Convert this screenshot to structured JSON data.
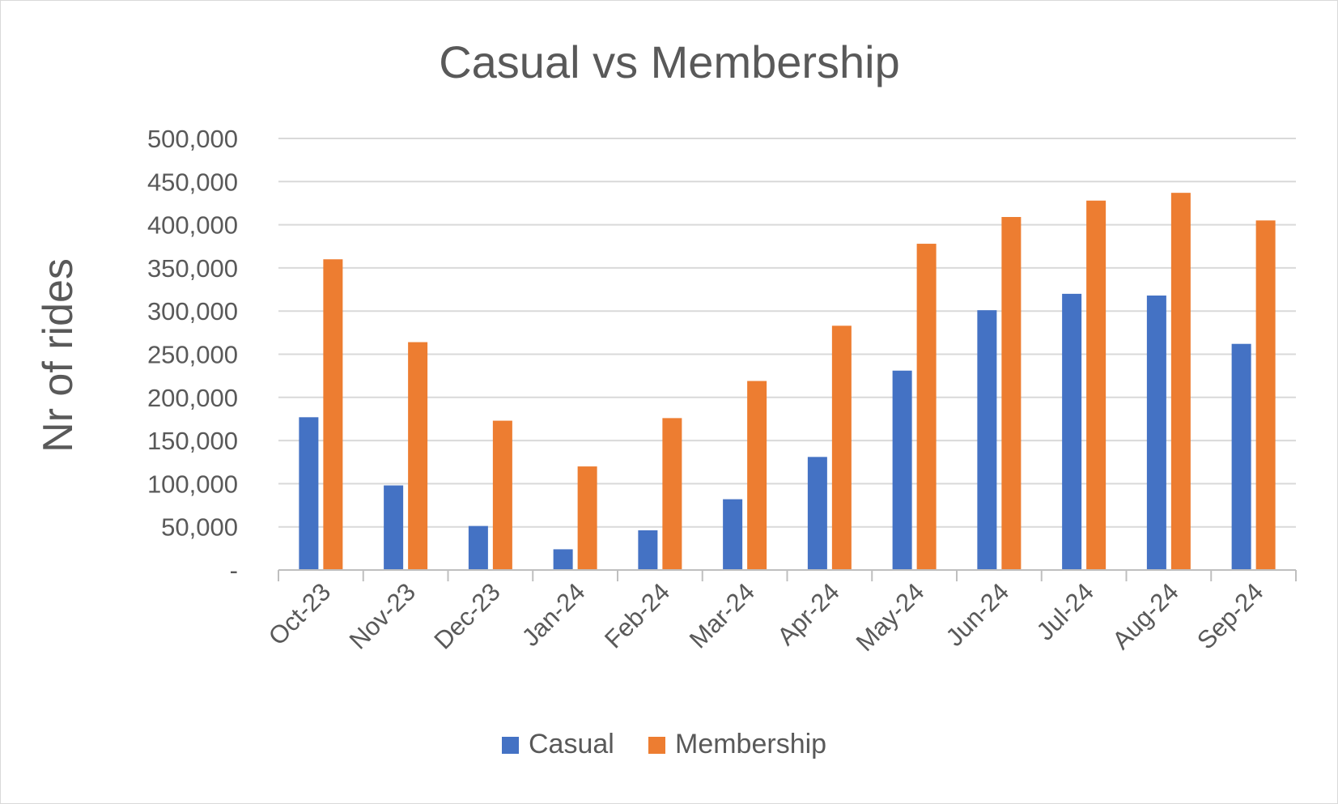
{
  "chart_data": {
    "type": "bar",
    "title": "Casual vs Membership",
    "xlabel": "",
    "ylabel": "Nr of rides",
    "categories": [
      "Oct-23",
      "Nov-23",
      "Dec-23",
      "Jan-24",
      "Feb-24",
      "Mar-24",
      "Apr-24",
      "May-24",
      "Jun-24",
      "Jul-24",
      "Aug-24",
      "Sep-24"
    ],
    "series": [
      {
        "name": "Casual",
        "color": "#4472c4",
        "values": [
          177000,
          98000,
          51000,
          24000,
          46000,
          82000,
          131000,
          231000,
          301000,
          320000,
          318000,
          262000
        ]
      },
      {
        "name": "Membership",
        "color": "#ed7d31",
        "values": [
          360000,
          264000,
          173000,
          120000,
          176000,
          219000,
          283000,
          378000,
          409000,
          428000,
          437000,
          405000
        ]
      }
    ],
    "ylim": [
      0,
      500000
    ],
    "yticks": [
      0,
      50000,
      100000,
      150000,
      200000,
      250000,
      300000,
      350000,
      400000,
      450000,
      500000
    ],
    "ytick_labels": [
      "-",
      "50,000",
      "100,000",
      "150,000",
      "200,000",
      "250,000",
      "300,000",
      "350,000",
      "400,000",
      "450,000",
      "500,000"
    ],
    "grid": true,
    "gridline_color": "#d9d9d9",
    "axis_color": "#bfbfbf",
    "text_color": "#595959",
    "legend_position": "bottom"
  }
}
